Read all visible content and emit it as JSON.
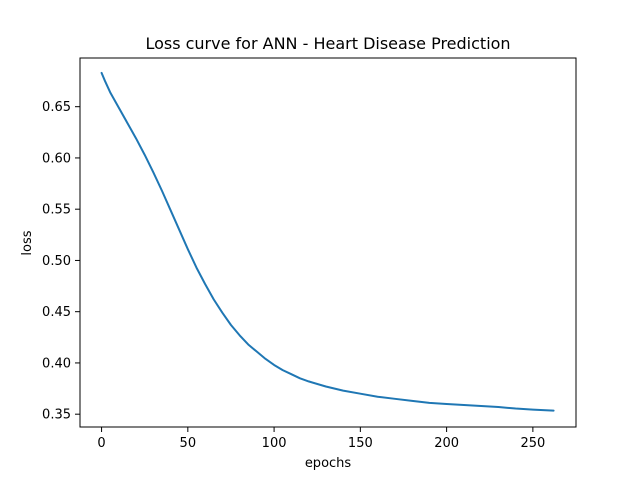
{
  "chart_data": {
    "type": "line",
    "title": "Loss curve for ANN - Heart Disease Prediction",
    "xlabel": "epochs",
    "ylabel": "loss",
    "xlim": [
      -12.5,
      275
    ],
    "ylim": [
      0.3375,
      0.6975
    ],
    "x_ticks": [
      0,
      50,
      100,
      150,
      200,
      250
    ],
    "x_tick_labels": [
      "0",
      "50",
      "100",
      "150",
      "200",
      "250"
    ],
    "y_ticks": [
      0.35,
      0.4,
      0.45,
      0.5,
      0.55,
      0.6,
      0.65
    ],
    "y_tick_labels": [
      "0.35",
      "0.40",
      "0.45",
      "0.50",
      "0.55",
      "0.60",
      "0.65"
    ],
    "grid": false,
    "legend": "none",
    "color": "#1f77b4",
    "series": [
      {
        "x": [
          0,
          2,
          5,
          10,
          15,
          20,
          25,
          30,
          35,
          40,
          45,
          50,
          55,
          60,
          65,
          70,
          75,
          80,
          85,
          90,
          95,
          100,
          105,
          110,
          115,
          120,
          130,
          140,
          150,
          160,
          170,
          180,
          190,
          200,
          210,
          220,
          230,
          240,
          250,
          262
        ],
        "y": [
          0.683,
          0.675,
          0.664,
          0.649,
          0.634,
          0.619,
          0.603,
          0.586,
          0.568,
          0.549,
          0.53,
          0.511,
          0.493,
          0.477,
          0.462,
          0.449,
          0.437,
          0.427,
          0.418,
          0.411,
          0.404,
          0.398,
          0.393,
          0.389,
          0.385,
          0.382,
          0.377,
          0.373,
          0.37,
          0.367,
          0.365,
          0.363,
          0.361,
          0.36,
          0.359,
          0.358,
          0.357,
          0.3555,
          0.3545,
          0.3535
        ]
      }
    ]
  }
}
